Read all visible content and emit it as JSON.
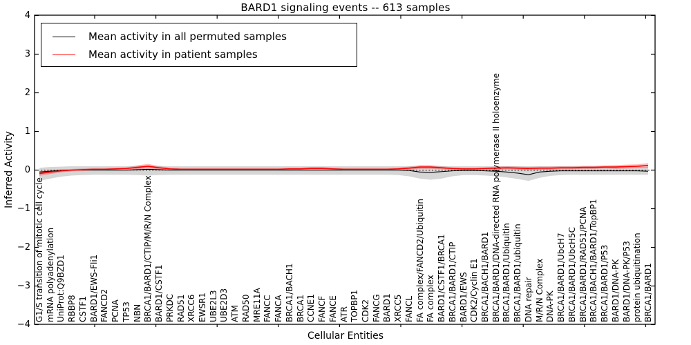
{
  "chart_data": {
    "type": "line",
    "title": "BARD1 signaling events -- 613 samples",
    "xlabel": "Cellular Entities",
    "ylabel": "Inferred Activity",
    "ylim": [
      -4,
      4
    ],
    "ytick_labels": [
      "4",
      "3",
      "2",
      "1",
      "0",
      "−1",
      "−2",
      "−3",
      "−4"
    ],
    "ytick_values": [
      4,
      3,
      2,
      1,
      0,
      -1,
      -2,
      -3,
      -4
    ],
    "grid": false,
    "zero_line": "black dotted horizontal line at y=0",
    "legend_position": "upper left",
    "legend": [
      "Mean activity in all permuted samples",
      "Mean activity in patient samples"
    ],
    "colors": {
      "permuted_line": "#000000",
      "patient_line": "#ff0000",
      "permuted_band": "rgba(0,0,0,0.16)",
      "patient_band": "rgba(255,0,0,0.27)"
    },
    "categories": [
      "G1/S transition of mitotic cell cycle",
      "mRNA polyadenylation",
      "UniProt:Q9BZD1",
      "RBBP8",
      "CSTF1",
      "BARD1/EWS-Fli1",
      "FANCD2",
      "PCNA",
      "TP53",
      "NBN",
      "BRCA1/BARD1/CTIP/M/R/N Complex",
      "BARD1/CSTF1",
      "PRKDC",
      "RAD51",
      "XRCC6",
      "EWSR1",
      "UBE2L3",
      "UBE2D3",
      "ATM",
      "RAD50",
      "MRE11A",
      "FANCC",
      "FANCA",
      "BRCA1/BACH1",
      "BRCA1",
      "CCNE1",
      "FANCF",
      "FANCE",
      "ATR",
      "TOPBP1",
      "CDK2",
      "FANCG",
      "BARD1",
      "XRCC5",
      "FANCL",
      "FA complex/FANCD2/Ubiquitin",
      "FA complex",
      "BARD1/CSTF1/BRCA1",
      "BRCA1/BARD1/CTIP",
      "BARD1/EWS",
      "CDK2/Cyclin E1",
      "BRCA1/BACH1/BARD1",
      "BRCA1/BARD1/DNA-directed RNA polymerase II holoenzyme",
      "BRCA1/BARD1/Ubiquitin",
      "BRCA1/BARD1/ubiquitin",
      "DNA repair",
      "M/R/N Complex",
      "DNA-PK",
      "BRCA1/BARD1/UbcH7",
      "BRCA1/BARD1/UbcH5C",
      "BRCA1/BARD1/RAD51/PCNA",
      "BRCA1/BACH1/BARD1/TopBP1",
      "BRCA1/BARD1/P53",
      "BARD1/DNA-PK",
      "BARD1/DNA-PK/P53",
      "protein ubiquitination",
      "BRCA1/BARD1"
    ],
    "series": [
      {
        "name": "Mean activity in all permuted samples",
        "values": [
          -0.05,
          -0.03,
          -0.01,
          0.0,
          0.0,
          0.0,
          0.0,
          0.0,
          0.0,
          0.01,
          0.02,
          0.01,
          0.0,
          0.0,
          0.0,
          0.0,
          0.0,
          0.0,
          0.0,
          0.0,
          0.0,
          0.0,
          0.0,
          0.0,
          0.0,
          0.0,
          0.0,
          0.0,
          0.0,
          0.0,
          0.0,
          0.0,
          0.0,
          0.0,
          -0.01,
          -0.05,
          -0.06,
          -0.04,
          -0.02,
          -0.01,
          -0.01,
          -0.02,
          -0.03,
          -0.05,
          -0.08,
          -0.12,
          -0.05,
          -0.03,
          -0.02,
          -0.02,
          -0.02,
          -0.02,
          -0.02,
          -0.02,
          -0.02,
          -0.02,
          -0.03
        ]
      },
      {
        "name": "Mean activity in patient samples",
        "values": [
          -0.09,
          -0.05,
          -0.02,
          0.0,
          0.01,
          0.02,
          0.02,
          0.03,
          0.04,
          0.07,
          0.1,
          0.06,
          0.03,
          0.02,
          0.02,
          0.02,
          0.02,
          0.02,
          0.02,
          0.02,
          0.02,
          0.02,
          0.02,
          0.03,
          0.03,
          0.04,
          0.04,
          0.03,
          0.02,
          0.02,
          0.02,
          0.02,
          0.02,
          0.03,
          0.05,
          0.08,
          0.08,
          0.06,
          0.04,
          0.03,
          0.03,
          0.04,
          0.05,
          0.06,
          0.05,
          0.04,
          0.05,
          0.05,
          0.06,
          0.06,
          0.07,
          0.07,
          0.08,
          0.08,
          0.09,
          0.1,
          0.12
        ]
      }
    ],
    "permuted_band_upper": [
      0.06,
      0.08,
      0.09,
      0.1,
      0.1,
      0.1,
      0.1,
      0.1,
      0.1,
      0.11,
      0.12,
      0.11,
      0.1,
      0.1,
      0.1,
      0.1,
      0.1,
      0.1,
      0.1,
      0.1,
      0.1,
      0.1,
      0.1,
      0.1,
      0.1,
      0.1,
      0.1,
      0.1,
      0.1,
      0.1,
      0.1,
      0.1,
      0.1,
      0.1,
      0.1,
      0.1,
      0.1,
      0.1,
      0.1,
      0.1,
      0.1,
      0.1,
      0.1,
      0.1,
      0.1,
      0.1,
      0.1,
      0.1,
      0.1,
      0.1,
      0.1,
      0.1,
      0.1,
      0.1,
      0.1,
      0.09,
      0.08
    ],
    "permuted_band_lower": [
      -0.28,
      -0.22,
      -0.17,
      -0.14,
      -0.13,
      -0.12,
      -0.12,
      -0.12,
      -0.12,
      -0.13,
      -0.14,
      -0.13,
      -0.12,
      -0.12,
      -0.12,
      -0.12,
      -0.12,
      -0.12,
      -0.12,
      -0.12,
      -0.12,
      -0.12,
      -0.12,
      -0.12,
      -0.12,
      -0.12,
      -0.12,
      -0.12,
      -0.12,
      -0.12,
      -0.12,
      -0.12,
      -0.12,
      -0.13,
      -0.16,
      -0.22,
      -0.25,
      -0.22,
      -0.16,
      -0.13,
      -0.13,
      -0.14,
      -0.16,
      -0.19,
      -0.23,
      -0.28,
      -0.2,
      -0.15,
      -0.13,
      -0.12,
      -0.12,
      -0.12,
      -0.12,
      -0.12,
      -0.12,
      -0.12,
      -0.12
    ],
    "patient_band_halfwidth": [
      0.06,
      0.05,
      0.04,
      0.03,
      0.03,
      0.03,
      0.03,
      0.03,
      0.03,
      0.05,
      0.06,
      0.04,
      0.03,
      0.03,
      0.03,
      0.03,
      0.03,
      0.03,
      0.03,
      0.03,
      0.03,
      0.03,
      0.03,
      0.03,
      0.03,
      0.04,
      0.04,
      0.03,
      0.03,
      0.03,
      0.03,
      0.03,
      0.03,
      0.03,
      0.04,
      0.05,
      0.05,
      0.04,
      0.03,
      0.03,
      0.03,
      0.03,
      0.04,
      0.04,
      0.04,
      0.04,
      0.04,
      0.04,
      0.04,
      0.04,
      0.04,
      0.04,
      0.04,
      0.05,
      0.05,
      0.05,
      0.06
    ]
  }
}
